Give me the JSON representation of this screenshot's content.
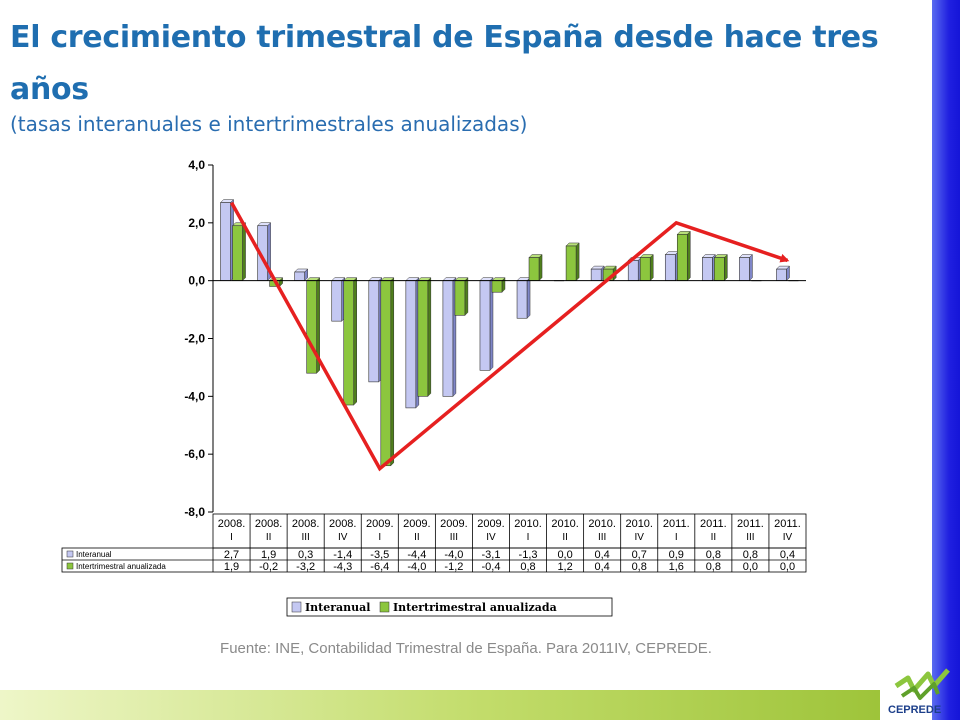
{
  "title": "El crecimiento trimestral de España desde hace tres años",
  "subtitle": "(tasas interanuales e intertrimestrales anualizadas)",
  "source": "Fuente: INE, Contabilidad Trimestral de España. Para 2011IV, CEPREDE.",
  "logo_text": "CEPREDE",
  "colors": {
    "title": "#1f6eb0",
    "interanual": "#c4c8f2",
    "intertrimestral": "#8cc63e",
    "trend_arrow": "#e62020",
    "right_bar": "#1f1fe0",
    "bottom_bar": "#9ec43a"
  },
  "chart_data": {
    "type": "bar",
    "categories": [
      [
        "2008.",
        "I"
      ],
      [
        "2008.",
        "II"
      ],
      [
        "2008.",
        "III"
      ],
      [
        "2008.",
        "IV"
      ],
      [
        "2009.",
        "I"
      ],
      [
        "2009.",
        "II"
      ],
      [
        "2009.",
        "III"
      ],
      [
        "2009.",
        "IV"
      ],
      [
        "2010.",
        "I"
      ],
      [
        "2010.",
        "II"
      ],
      [
        "2010.",
        "III"
      ],
      [
        "2010.",
        "IV"
      ],
      [
        "2011.",
        "I"
      ],
      [
        "2011.",
        "II"
      ],
      [
        "2011.",
        "III"
      ],
      [
        "2011.",
        "IV"
      ]
    ],
    "series": [
      {
        "name": "Interanual",
        "table_label": "Interanual",
        "values": [
          2.7,
          1.9,
          0.3,
          -1.4,
          -3.5,
          -4.4,
          -4.0,
          -3.1,
          -1.3,
          0.0,
          0.4,
          0.7,
          0.9,
          0.8,
          0.8,
          0.4
        ],
        "labels": [
          "2,7",
          "1,9",
          "0,3",
          "-1,4",
          "-3,5",
          "-4,4",
          "-4,0",
          "-3,1",
          "-1,3",
          "0,0",
          "0,4",
          "0,7",
          "0,9",
          "0,8",
          "0,8",
          "0,4"
        ]
      },
      {
        "name": "Intertrimestral anualizada",
        "table_label": "Intertrimestral anualizada",
        "values": [
          1.9,
          -0.2,
          -3.2,
          -4.3,
          -6.4,
          -4.0,
          -1.2,
          -0.4,
          0.8,
          1.2,
          0.4,
          0.8,
          1.6,
          0.8,
          0.0,
          0.0
        ],
        "labels": [
          "1,9",
          "-0,2",
          "-3,2",
          "-4,3",
          "-6,4",
          "-4,0",
          "-1,2",
          "-0,4",
          "0,8",
          "1,2",
          "0,4",
          "0,8",
          "1,6",
          "0,8",
          "0,0",
          "0,0"
        ]
      }
    ],
    "y_ticks": [
      "4,0",
      "2,0",
      "0,0",
      "-2,0",
      "-4,0",
      "-6,0",
      "-8,0"
    ],
    "y_tick_values": [
      4,
      2,
      0,
      -2,
      -4,
      -6,
      -8
    ],
    "ylim": [
      -8,
      4
    ],
    "legend": [
      "Interanual",
      "Intertrimestral anualizada"
    ],
    "legend_position": "bottom",
    "data_table": true,
    "trend_arrow": [
      {
        "category": 0,
        "value": 2.7
      },
      {
        "category": 4,
        "value": -6.5
      },
      {
        "category": 12,
        "value": 2.0
      },
      {
        "category": 15,
        "value": 0.7
      }
    ]
  }
}
